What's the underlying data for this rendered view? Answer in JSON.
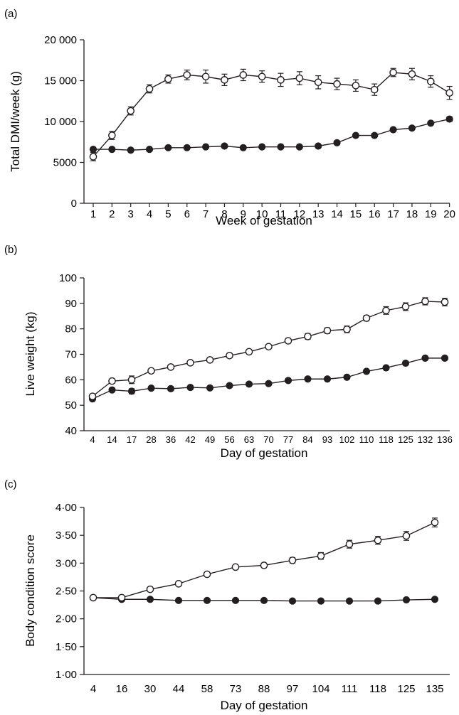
{
  "chart_data": [
    {
      "panel": "(a)",
      "type": "line",
      "xlabel": "Week of gestation",
      "ylabel": "Total DMI/week (g)",
      "categories": [
        "1",
        "2",
        "3",
        "4",
        "5",
        "6",
        "7",
        "8",
        "9",
        "10",
        "11",
        "12",
        "13",
        "14",
        "15",
        "16",
        "17",
        "18",
        "19",
        "20"
      ],
      "yticks": [
        "0",
        "5000",
        "10 000",
        "15 000",
        "20 000"
      ],
      "ylim": [
        0,
        20000
      ],
      "grid": false,
      "series": [
        {
          "marker": "open",
          "values": [
            5700,
            8300,
            11300,
            14000,
            15200,
            15700,
            15500,
            15100,
            15700,
            15500,
            15100,
            15300,
            14800,
            14600,
            14400,
            13900,
            16000,
            15800,
            14900,
            13500
          ],
          "errors": [
            500,
            500,
            500,
            500,
            500,
            600,
            800,
            700,
            700,
            700,
            800,
            800,
            800,
            700,
            700,
            700,
            500,
            700,
            700,
            800
          ]
        },
        {
          "marker": "filled",
          "values": [
            6600,
            6600,
            6500,
            6600,
            6800,
            6800,
            6900,
            7000,
            6800,
            6900,
            6900,
            6900,
            7000,
            7400,
            8300,
            8300,
            9000,
            9200,
            9800,
            10300
          ],
          "errors": [
            200,
            200,
            200,
            200,
            200,
            200,
            200,
            200,
            200,
            200,
            200,
            200,
            200,
            200,
            200,
            200,
            200,
            200,
            200,
            300
          ]
        }
      ]
    },
    {
      "panel": "(b)",
      "type": "line",
      "xlabel": "Day of gestation",
      "ylabel": "Live weight (kg)",
      "categories": [
        "4",
        "14",
        "17",
        "28",
        "36",
        "42",
        "49",
        "56",
        "63",
        "70",
        "77",
        "84",
        "93",
        "102",
        "110",
        "118",
        "125",
        "132",
        "136"
      ],
      "yticks": [
        "40",
        "50",
        "60",
        "70",
        "80",
        "90",
        "100"
      ],
      "ylim": [
        40,
        100
      ],
      "grid": false,
      "series": [
        {
          "marker": "open",
          "values": [
            53.5,
            59.5,
            60,
            63.5,
            65,
            66.7,
            67.8,
            69.5,
            71,
            73,
            75.3,
            77,
            79.3,
            79.8,
            84.2,
            87.2,
            88.7,
            90.8,
            90.5
          ],
          "errors": [
            0.5,
            0.7,
            1.5,
            0.7,
            0.5,
            0.7,
            0.6,
            0.6,
            0.6,
            0.7,
            0.9,
            1.1,
            1.1,
            1.3,
            1.1,
            1.5,
            1.5,
            1.4,
            1.5
          ]
        },
        {
          "marker": "filled",
          "values": [
            52.5,
            56,
            55.5,
            56.7,
            56.5,
            57,
            56.8,
            57.7,
            58.3,
            58.5,
            59.7,
            60.3,
            60.3,
            61,
            63.3,
            64.7,
            66.5,
            68.5,
            68.5
          ],
          "errors": [
            0.5,
            0.7,
            1,
            0.5,
            0.5,
            0.5,
            0.5,
            0.5,
            0.5,
            0.5,
            0.5,
            0.5,
            0.5,
            0.5,
            0.7,
            0.7,
            0.7,
            0.5,
            0.5
          ]
        }
      ]
    },
    {
      "panel": "(c)",
      "type": "line",
      "xlabel": "Day of gestation",
      "ylabel": "Body condition score",
      "categories": [
        "4",
        "16",
        "30",
        "44",
        "58",
        "73",
        "88",
        "97",
        "104",
        "111",
        "118",
        "125",
        "135"
      ],
      "yticks": [
        "1·00",
        "1·50",
        "2·00",
        "2·50",
        "3·00",
        "3·50",
        "4·00"
      ],
      "ylim": [
        1,
        4
      ],
      "grid": false,
      "series": [
        {
          "marker": "open",
          "values": [
            2.38,
            2.38,
            2.53,
            2.63,
            2.8,
            2.93,
            2.96,
            3.05,
            3.13,
            3.34,
            3.41,
            3.49,
            3.73
          ],
          "errors": [
            0.03,
            0.03,
            0.03,
            0.03,
            0.03,
            0.03,
            0.04,
            0.05,
            0.06,
            0.07,
            0.07,
            0.08,
            0.08
          ]
        },
        {
          "marker": "filled",
          "values": [
            2.38,
            2.35,
            2.35,
            2.33,
            2.33,
            2.33,
            2.33,
            2.32,
            2.32,
            2.32,
            2.32,
            2.34,
            2.35
          ],
          "errors": [
            0.02,
            0.02,
            0.02,
            0.02,
            0.02,
            0.02,
            0.02,
            0.02,
            0.02,
            0.02,
            0.02,
            0.02,
            0.02
          ]
        }
      ]
    }
  ]
}
